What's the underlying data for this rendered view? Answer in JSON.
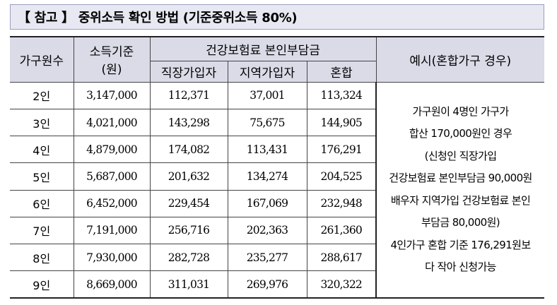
{
  "title": "【 참고 】 중위소득 확인 방법 (기준중위소득 80%)",
  "headers": {
    "members": "가구원수",
    "income_line1": "소득기준",
    "income_line2": "(원)",
    "premium_group": "건강보험료 본인부담금",
    "employee": "직장가입자",
    "regional": "지역가입자",
    "mixed": "혼합",
    "example": "예시(혼합가구 경우)"
  },
  "rows": [
    {
      "members": "2인",
      "income": "3,147,000",
      "employee": "112,371",
      "regional": "37,001",
      "mixed": "113,324"
    },
    {
      "members": "3인",
      "income": "4,021,000",
      "employee": "143,298",
      "regional": "75,675",
      "mixed": "144,905"
    },
    {
      "members": "4인",
      "income": "4,879,000",
      "employee": "174,082",
      "regional": "113,431",
      "mixed": "176,291"
    },
    {
      "members": "5인",
      "income": "5,687,000",
      "employee": "201,632",
      "regional": "134,274",
      "mixed": "204,525"
    },
    {
      "members": "6인",
      "income": "6,452,000",
      "employee": "229,454",
      "regional": "167,069",
      "mixed": "232,948"
    },
    {
      "members": "7인",
      "income": "7,191,000",
      "employee": "256,716",
      "regional": "202,363",
      "mixed": "261,360"
    },
    {
      "members": "8인",
      "income": "7,930,000",
      "employee": "282,728",
      "regional": "235,277",
      "mixed": "288,617"
    },
    {
      "members": "9인",
      "income": "8,669,000",
      "employee": "311,031",
      "regional": "269,976",
      "mixed": "320,322"
    }
  ],
  "example_lines": [
    "가구원이 4명인 가구가",
    "합산 170,000원인 경우",
    "(신청인 직장가입",
    "건강보험료 본인부담금 90,000원",
    "배우자 지역가입 건강보험료 본인",
    "부담금 80,000원)",
    "4인가구 혼합 기준 176,291원보",
    "다 작아 신청가능"
  ]
}
